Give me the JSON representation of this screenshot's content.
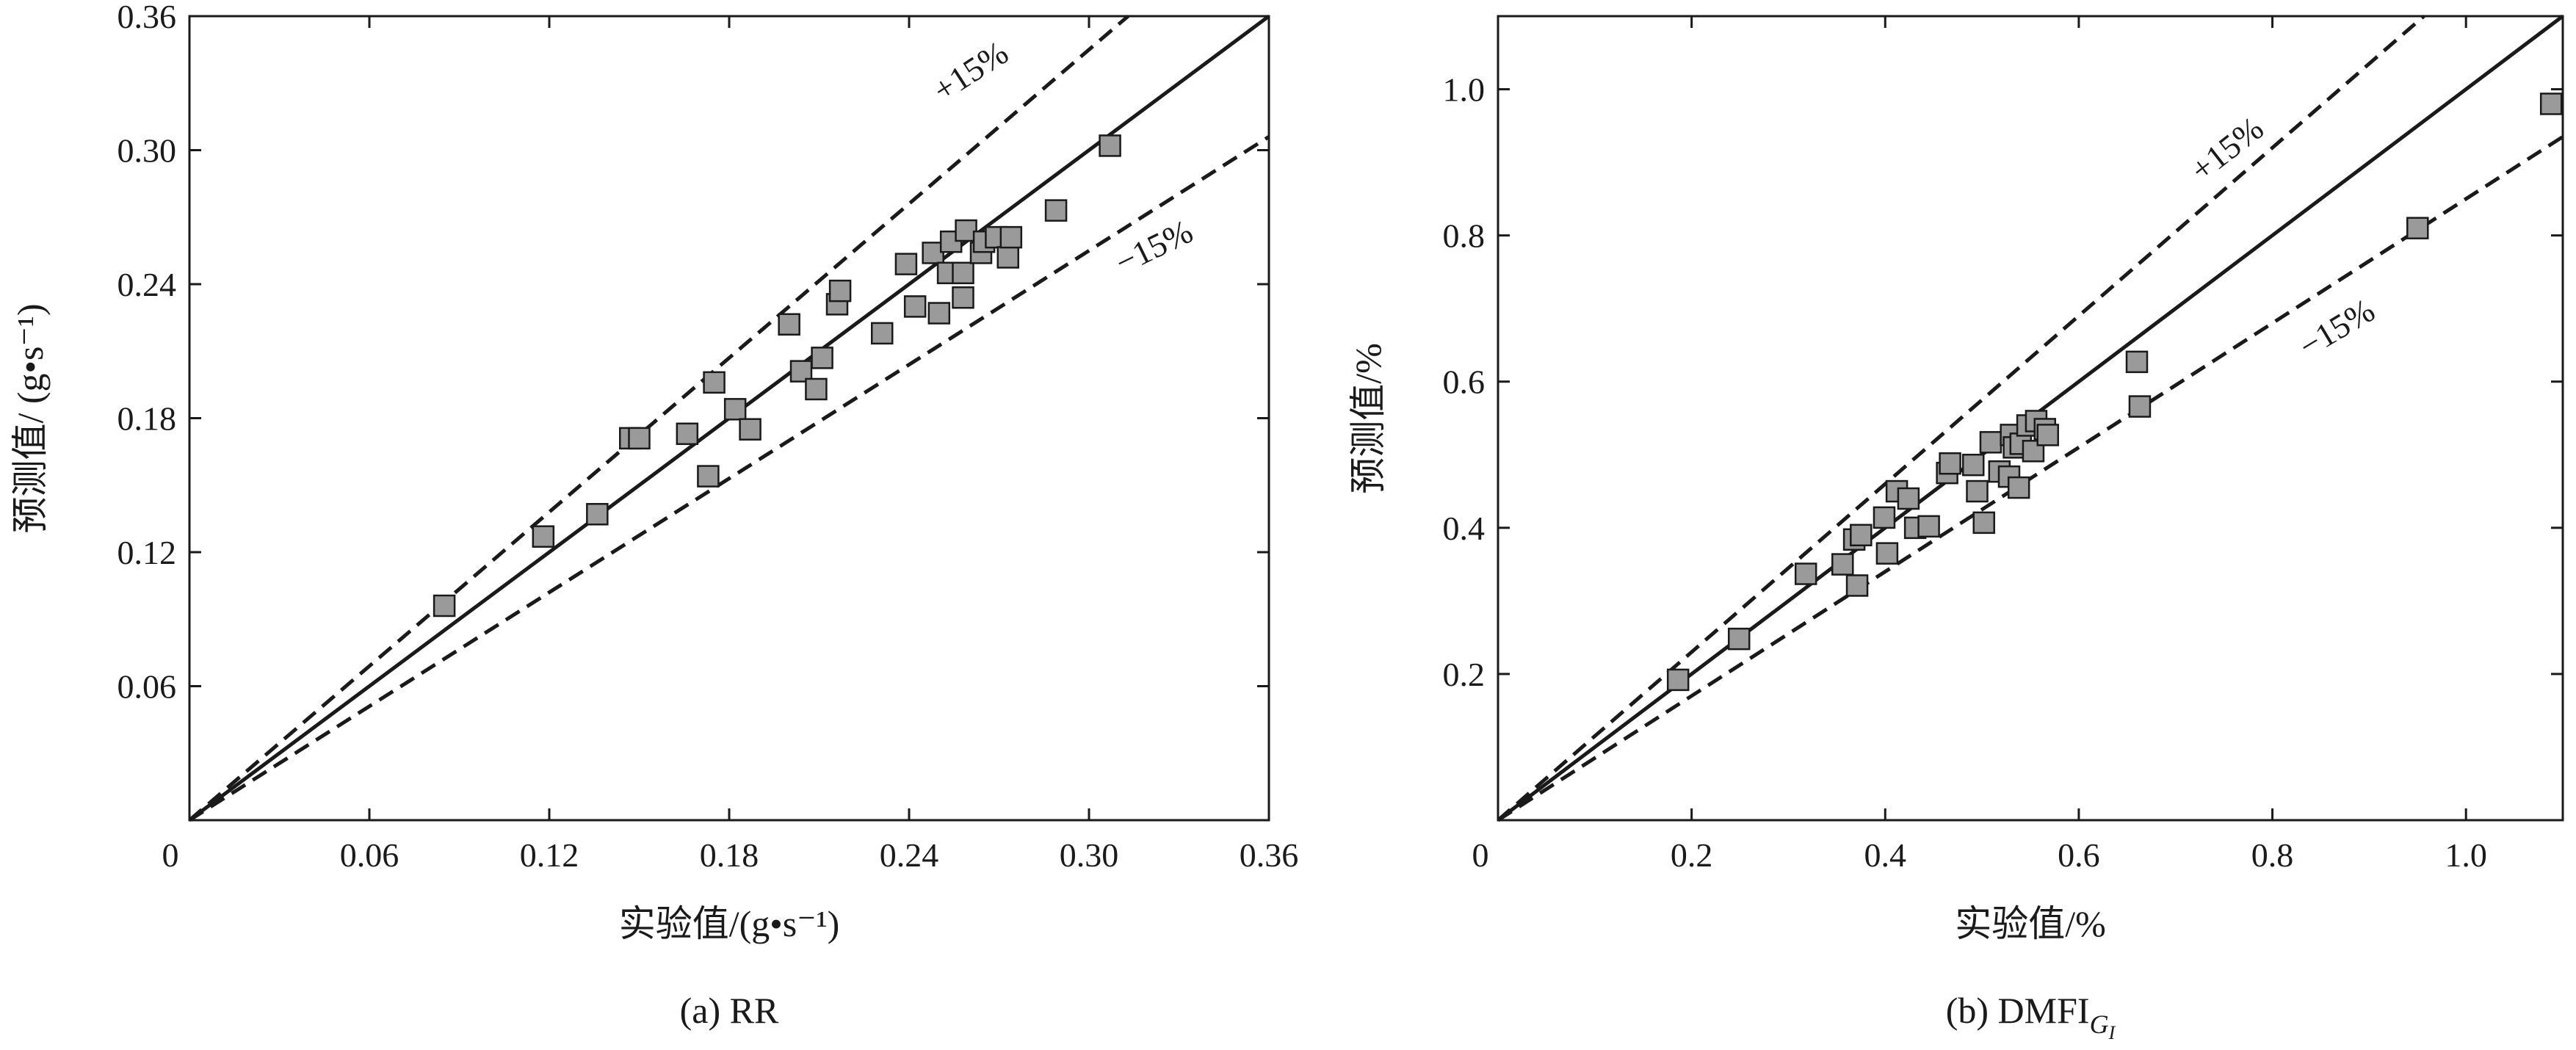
{
  "chart_data": [
    {
      "type": "scatter",
      "caption": "(a) RR",
      "xlabel": "实验值/(g•s⁻¹)",
      "ylabel": "预测值/ (g•s⁻¹)",
      "xlim": [
        0,
        0.36
      ],
      "ylim": [
        0,
        0.36
      ],
      "x_ticks": [
        "0",
        "0.06",
        "0.12",
        "0.18",
        "0.24",
        "0.30",
        "0.36"
      ],
      "y_ticks": [
        "0.06",
        "0.12",
        "0.18",
        "0.24",
        "0.30",
        "0.36"
      ],
      "tick_values": [
        0.06,
        0.12,
        0.18,
        0.24,
        0.3,
        0.36
      ],
      "reference_lines": [
        {
          "label": "",
          "slope": 1.0,
          "style": "solid"
        },
        {
          "label": "+15%",
          "slope": 1.15,
          "style": "dashed"
        },
        {
          "label": "−15%",
          "slope": 0.85,
          "style": "dashed"
        }
      ],
      "points": [
        [
          0.085,
          0.096
        ],
        [
          0.118,
          0.127
        ],
        [
          0.136,
          0.137
        ],
        [
          0.147,
          0.171
        ],
        [
          0.15,
          0.171
        ],
        [
          0.166,
          0.173
        ],
        [
          0.173,
          0.154
        ],
        [
          0.175,
          0.196
        ],
        [
          0.182,
          0.184
        ],
        [
          0.187,
          0.175
        ],
        [
          0.2,
          0.222
        ],
        [
          0.204,
          0.201
        ],
        [
          0.209,
          0.193
        ],
        [
          0.211,
          0.207
        ],
        [
          0.216,
          0.231
        ],
        [
          0.217,
          0.237
        ],
        [
          0.231,
          0.218
        ],
        [
          0.239,
          0.249
        ],
        [
          0.242,
          0.23
        ],
        [
          0.248,
          0.254
        ],
        [
          0.25,
          0.227
        ],
        [
          0.253,
          0.245
        ],
        [
          0.254,
          0.259
        ],
        [
          0.258,
          0.245
        ],
        [
          0.258,
          0.234
        ],
        [
          0.259,
          0.264
        ],
        [
          0.264,
          0.254
        ],
        [
          0.265,
          0.259
        ],
        [
          0.269,
          0.261
        ],
        [
          0.273,
          0.252
        ],
        [
          0.274,
          0.261
        ],
        [
          0.289,
          0.273
        ],
        [
          0.307,
          0.302
        ]
      ]
    },
    {
      "type": "scatter",
      "caption": "(b) DMFI",
      "caption_subscript": "G",
      "caption_subsubscript": "I",
      "xlabel": "实验值/%",
      "ylabel": "预测值/%",
      "xlim": [
        0,
        1.1
      ],
      "ylim": [
        0,
        1.1
      ],
      "x_ticks": [
        "0",
        "0.2",
        "0.4",
        "0.6",
        "0.8",
        "1.0"
      ],
      "y_ticks": [
        "0.2",
        "0.4",
        "0.6",
        "0.8",
        "1.0"
      ],
      "tick_values": [
        0.2,
        0.4,
        0.6,
        0.8,
        1.0
      ],
      "reference_lines": [
        {
          "label": "",
          "slope": 1.0,
          "style": "solid"
        },
        {
          "label": "+15%",
          "slope": 1.15,
          "style": "dashed"
        },
        {
          "label": "−15%",
          "slope": 0.85,
          "style": "dashed"
        }
      ],
      "points": [
        [
          0.186,
          0.192
        ],
        [
          0.249,
          0.248
        ],
        [
          0.318,
          0.337
        ],
        [
          0.356,
          0.35
        ],
        [
          0.368,
          0.384
        ],
        [
          0.371,
          0.321
        ],
        [
          0.375,
          0.39
        ],
        [
          0.399,
          0.414
        ],
        [
          0.402,
          0.365
        ],
        [
          0.412,
          0.45
        ],
        [
          0.424,
          0.44
        ],
        [
          0.431,
          0.4
        ],
        [
          0.445,
          0.402
        ],
        [
          0.464,
          0.475
        ],
        [
          0.467,
          0.488
        ],
        [
          0.491,
          0.486
        ],
        [
          0.495,
          0.45
        ],
        [
          0.502,
          0.407
        ],
        [
          0.509,
          0.517
        ],
        [
          0.518,
          0.477
        ],
        [
          0.528,
          0.47
        ],
        [
          0.53,
          0.527
        ],
        [
          0.533,
          0.51
        ],
        [
          0.538,
          0.455
        ],
        [
          0.54,
          0.515
        ],
        [
          0.547,
          0.54
        ],
        [
          0.553,
          0.505
        ],
        [
          0.556,
          0.546
        ],
        [
          0.565,
          0.535
        ],
        [
          0.568,
          0.527
        ],
        [
          0.66,
          0.627
        ],
        [
          0.663,
          0.566
        ],
        [
          0.95,
          0.81
        ],
        [
          1.088,
          0.98
        ]
      ]
    }
  ]
}
